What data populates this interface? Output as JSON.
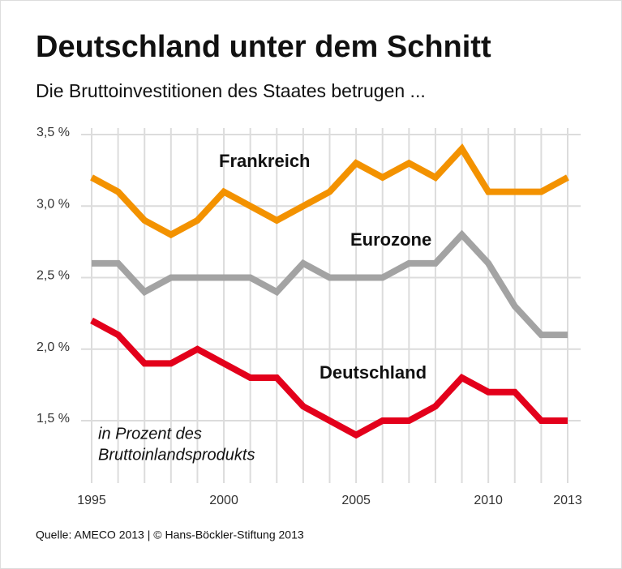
{
  "chart_data": {
    "type": "line",
    "title": "Deutschland unter dem Schnitt",
    "subtitle": "Die Bruttoinvestitionen des Staates betrugen ...",
    "unit_note": [
      "in Prozent des",
      "Bruttoinlandsprodukts"
    ],
    "source": "Quelle: AMECO 2013 | © Hans-Böckler-Stiftung 2013",
    "x": [
      1995,
      1996,
      1997,
      1998,
      1999,
      2000,
      2001,
      2002,
      2003,
      2004,
      2005,
      2006,
      2007,
      2008,
      2009,
      2010,
      2011,
      2012,
      2013
    ],
    "xlim": [
      1995,
      2013
    ],
    "xticks": [
      1995,
      2000,
      2005,
      2010,
      2013
    ],
    "ylim": [
      1.1,
      3.53
    ],
    "yticks": [
      {
        "value": 1.5,
        "label": "1,5 %"
      },
      {
        "value": 2.0,
        "label": "2,0 %"
      },
      {
        "value": 2.5,
        "label": "2,5 %"
      },
      {
        "value": 3.0,
        "label": "3,0 %"
      },
      {
        "value": 3.5,
        "label": "3,5 %"
      }
    ],
    "grid": true,
    "series": [
      {
        "name": "Frankreich",
        "color": "#f39200",
        "values": [
          3.2,
          3.1,
          2.9,
          2.8,
          2.9,
          3.1,
          3.0,
          2.9,
          3.0,
          3.1,
          3.3,
          3.2,
          3.3,
          3.2,
          3.4,
          3.1,
          3.1,
          3.1,
          3.2
        ]
      },
      {
        "name": "Eurozone",
        "color": "#a3a3a3",
        "values": [
          2.6,
          2.6,
          2.4,
          2.5,
          2.5,
          2.5,
          2.5,
          2.4,
          2.6,
          2.5,
          2.5,
          2.5,
          2.6,
          2.6,
          2.8,
          2.6,
          2.3,
          2.1,
          2.1
        ]
      },
      {
        "name": "Deutschland",
        "color": "#e3001b",
        "values": [
          2.2,
          2.1,
          1.9,
          1.9,
          2.0,
          1.9,
          1.8,
          1.8,
          1.6,
          1.5,
          1.4,
          1.5,
          1.5,
          1.6,
          1.8,
          1.7,
          1.7,
          1.5,
          1.5
        ]
      }
    ]
  }
}
